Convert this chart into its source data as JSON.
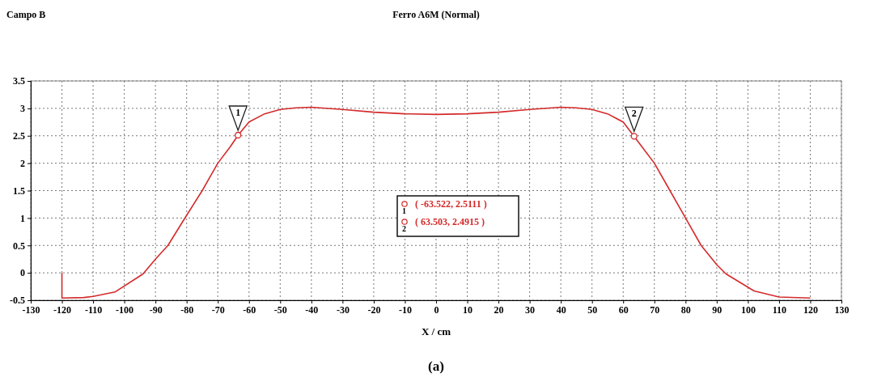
{
  "chart_data": {
    "type": "line",
    "title": "Ferro A6M (Normal)",
    "xlabel": "X / cm",
    "annotations": [
      {
        "text": "1",
        "x": -63.522,
        "y": 2.5111
      },
      {
        "text": "2",
        "x": 63.503,
        "y": 2.4915
      },
      "Campo B",
      "( -63.522, 2.5111 )",
      "( 63.503, 2.4915 )",
      "(a)"
    ],
    "series": [
      {
        "color": "#d42a2a",
        "x": [
          -120,
          -120,
          -113,
          -110,
          -103,
          -94,
          -90,
          -86,
          -80,
          -75,
          -70,
          -66,
          -63.5,
          -60,
          -55,
          -50,
          -45,
          -40,
          -30,
          -20,
          -10,
          0,
          10,
          20,
          30,
          40,
          45,
          50,
          55,
          60,
          63.5,
          66,
          70,
          75,
          80,
          85,
          90,
          93,
          102,
          110,
          120
        ],
        "values": [
          0,
          -0.46,
          -0.45,
          -0.43,
          -0.35,
          -0.02,
          0.25,
          0.5,
          1.05,
          1.5,
          2.0,
          2.3,
          2.51,
          2.75,
          2.9,
          2.98,
          3.01,
          3.02,
          2.98,
          2.93,
          2.9,
          2.89,
          2.9,
          2.93,
          2.98,
          3.02,
          3.01,
          2.98,
          2.9,
          2.75,
          2.49,
          2.3,
          2.0,
          1.5,
          1.0,
          0.5,
          0.15,
          -0.02,
          -0.33,
          -0.44,
          -0.46
        ]
      }
    ],
    "xlim": [
      -130,
      130
    ],
    "xticks": [
      -130,
      -120,
      -110,
      -100,
      -90,
      -80,
      -70,
      -60,
      -50,
      -40,
      -30,
      -20,
      -10,
      0,
      10,
      20,
      30,
      40,
      50,
      60,
      70,
      80,
      90,
      100,
      110,
      120,
      130
    ],
    "ylim": [
      -0.5,
      3.5
    ],
    "yticks": [
      -0.5,
      0,
      0.5,
      1,
      1.5,
      2,
      2.5,
      3,
      3.5
    ],
    "grid": true,
    "marker": "none",
    "line_style": "solid"
  }
}
